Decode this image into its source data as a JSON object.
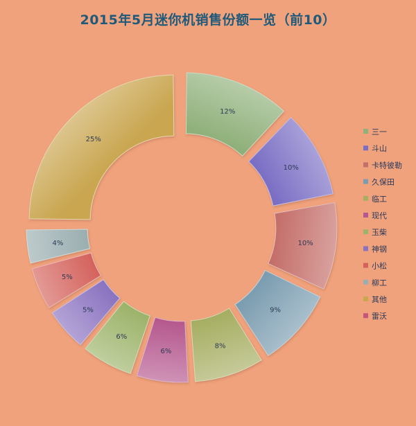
{
  "chart_data": {
    "type": "pie",
    "style": "exploded-donut",
    "title": "2015年5月迷你机销售份额一览（前10）",
    "categories": [
      "三一",
      "斗山",
      "卡特彼勒",
      "久保田",
      "临工",
      "现代",
      "玉柴",
      "神钢",
      "小松",
      "柳工",
      "其他",
      "雷沃"
    ],
    "series": [
      {
        "values": [
          12,
          10,
          10,
          9,
          8,
          6,
          6,
          5,
          5,
          4,
          25,
          0
        ],
        "labels": [
          "12%",
          "10%",
          "10%",
          "9%",
          "8%",
          "6%",
          "6%",
          "5%",
          "5%",
          "4%",
          "25%",
          ""
        ]
      }
    ],
    "colors": [
      "#8fb07a",
      "#7a6ec4",
      "#c46f6a",
      "#7b9db0",
      "#a6ae62",
      "#b5588e",
      "#9cb36a",
      "#8a72c0",
      "#d4625c",
      "#9aaeb0",
      "#c9a650",
      "#c4567a"
    ],
    "legend_position": "right"
  }
}
